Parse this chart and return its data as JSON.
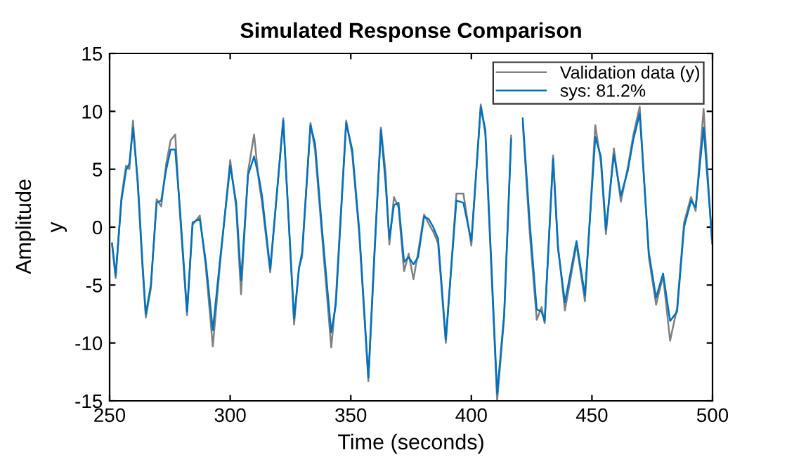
{
  "chart_data": {
    "type": "line",
    "title": "Simulated Response Comparison",
    "xlabel": "Time (seconds)",
    "ylabel": "y",
    "annotations": [
      "Amplitude"
    ],
    "x": [
      251,
      252.5,
      254.9,
      256.8,
      258.2,
      259.7,
      261.7,
      263.6,
      265,
      267.1,
      269.5,
      271.4,
      273.4,
      275.3,
      277.2,
      279.2,
      282.1,
      284.4,
      287.4,
      289.9,
      292.8,
      295.7,
      300,
      302.5,
      304.5,
      307.4,
      309.9,
      311.9,
      313.2,
      316.6,
      322,
      326.5,
      328.5,
      329.8,
      333.3,
      335.2,
      338.1,
      341.9,
      343.8,
      348.1,
      350.6,
      353.5,
      357.3,
      359.8,
      362.5,
      364.4,
      366,
      367.9,
      369.8,
      372.1,
      374,
      376,
      377.9,
      380.4,
      382.3,
      384.2,
      386.2,
      389.4,
      393.8,
      396.7,
      400,
      403.9,
      405.8,
      410.7,
      413.6,
      416.5,
      418.4,
      421.3,
      424.2,
      427.1,
      429.1,
      430.4,
      433.9,
      435.9,
      438.8,
      443.6,
      447.1,
      451.4,
      453.7,
      455.8,
      459.1,
      462,
      464.9,
      467.2,
      469.8,
      473.6,
      476.6,
      479.5,
      482.4,
      485.3,
      488.2,
      491.1,
      493,
      496.3,
      499.8
    ],
    "series": [
      {
        "name": "Validation data (y)",
        "color": "#808080",
        "values": [
          -1.4,
          -4.4,
          2.6,
          5.3,
          5.0,
          9.2,
          3.5,
          -3.4,
          -7.8,
          -5.3,
          2.4,
          1.8,
          5.4,
          7.5,
          8.0,
          1.0,
          -7.6,
          0.2,
          1.0,
          -3.5,
          -10.3,
          -3.4,
          5.8,
          1.6,
          -5.8,
          4.8,
          8.0,
          3.9,
          2.1,
          -3.9,
          9.4,
          -8.4,
          -3.5,
          -2.6,
          9.0,
          6.6,
          -0.8,
          -10.4,
          -6.2,
          9.2,
          6.3,
          -0.6,
          -13.3,
          -2.6,
          8.6,
          4.8,
          -1.5,
          2.6,
          1.7,
          -3.8,
          -2.3,
          -4.5,
          -2.2,
          1.1,
          0.3,
          -0.4,
          -1.4,
          -10.0,
          2.9,
          2.9,
          -1.6,
          10.6,
          8.0,
          -15.0,
          -7.8,
          7.9,
          null,
          9.0,
          -0.5,
          -8.0,
          -6.9,
          -8.3,
          6.2,
          -1.5,
          -7.2,
          -1.5,
          -6.4,
          8.8,
          5.6,
          -0.6,
          6.8,
          2.2,
          5.2,
          8.0,
          10.4,
          -2.6,
          -6.7,
          -4.2,
          -9.8,
          -7.0,
          0.4,
          2.6,
          1.4,
          10.2,
          -1.4
        ]
      },
      {
        "name": "sys: 81.2%",
        "color": "#0072bd",
        "values": [
          -1.4,
          -4.2,
          2.3,
          4.9,
          5.5,
          8.6,
          3.9,
          -3.0,
          -7.5,
          -5.0,
          2.1,
          2.3,
          4.9,
          6.7,
          6.7,
          1.5,
          -7.3,
          0.4,
          0.7,
          -3.0,
          -8.9,
          -3.0,
          5.3,
          2.1,
          -4.6,
          4.5,
          6.1,
          4.3,
          2.7,
          -3.6,
          9.2,
          -7.9,
          -3.6,
          -2.2,
          8.8,
          7.2,
          -0.2,
          -9.1,
          -6.7,
          9.0,
          6.7,
          -0.2,
          -13.0,
          -2.2,
          8.4,
          3.9,
          -1.0,
          1.9,
          2.1,
          -3.0,
          -2.6,
          -3.2,
          -2.6,
          0.9,
          0.7,
          0.0,
          -1.0,
          -9.7,
          2.3,
          2.1,
          -1.2,
          10.4,
          8.4,
          -14.4,
          -7.5,
          7.6,
          null,
          9.4,
          0.4,
          -7.1,
          -7.3,
          -8.1,
          5.9,
          -1.8,
          -6.5,
          -1.2,
          -5.9,
          7.8,
          6.1,
          -0.2,
          6.3,
          2.7,
          4.9,
          7.6,
          9.8,
          -2.2,
          -6.1,
          -4.0,
          -8.1,
          -7.3,
          0.0,
          2.3,
          1.7,
          8.6,
          -1.0
        ]
      }
    ],
    "xlim": [
      250,
      500
    ],
    "ylim": [
      -15,
      15
    ],
    "xticks": [
      250,
      300,
      350,
      400,
      450,
      500
    ],
    "yticks": [
      -15,
      -10,
      -5,
      0,
      5,
      10,
      15
    ],
    "grid": false,
    "legend": "top right",
    "line_style": "solid",
    "marker": "none"
  }
}
